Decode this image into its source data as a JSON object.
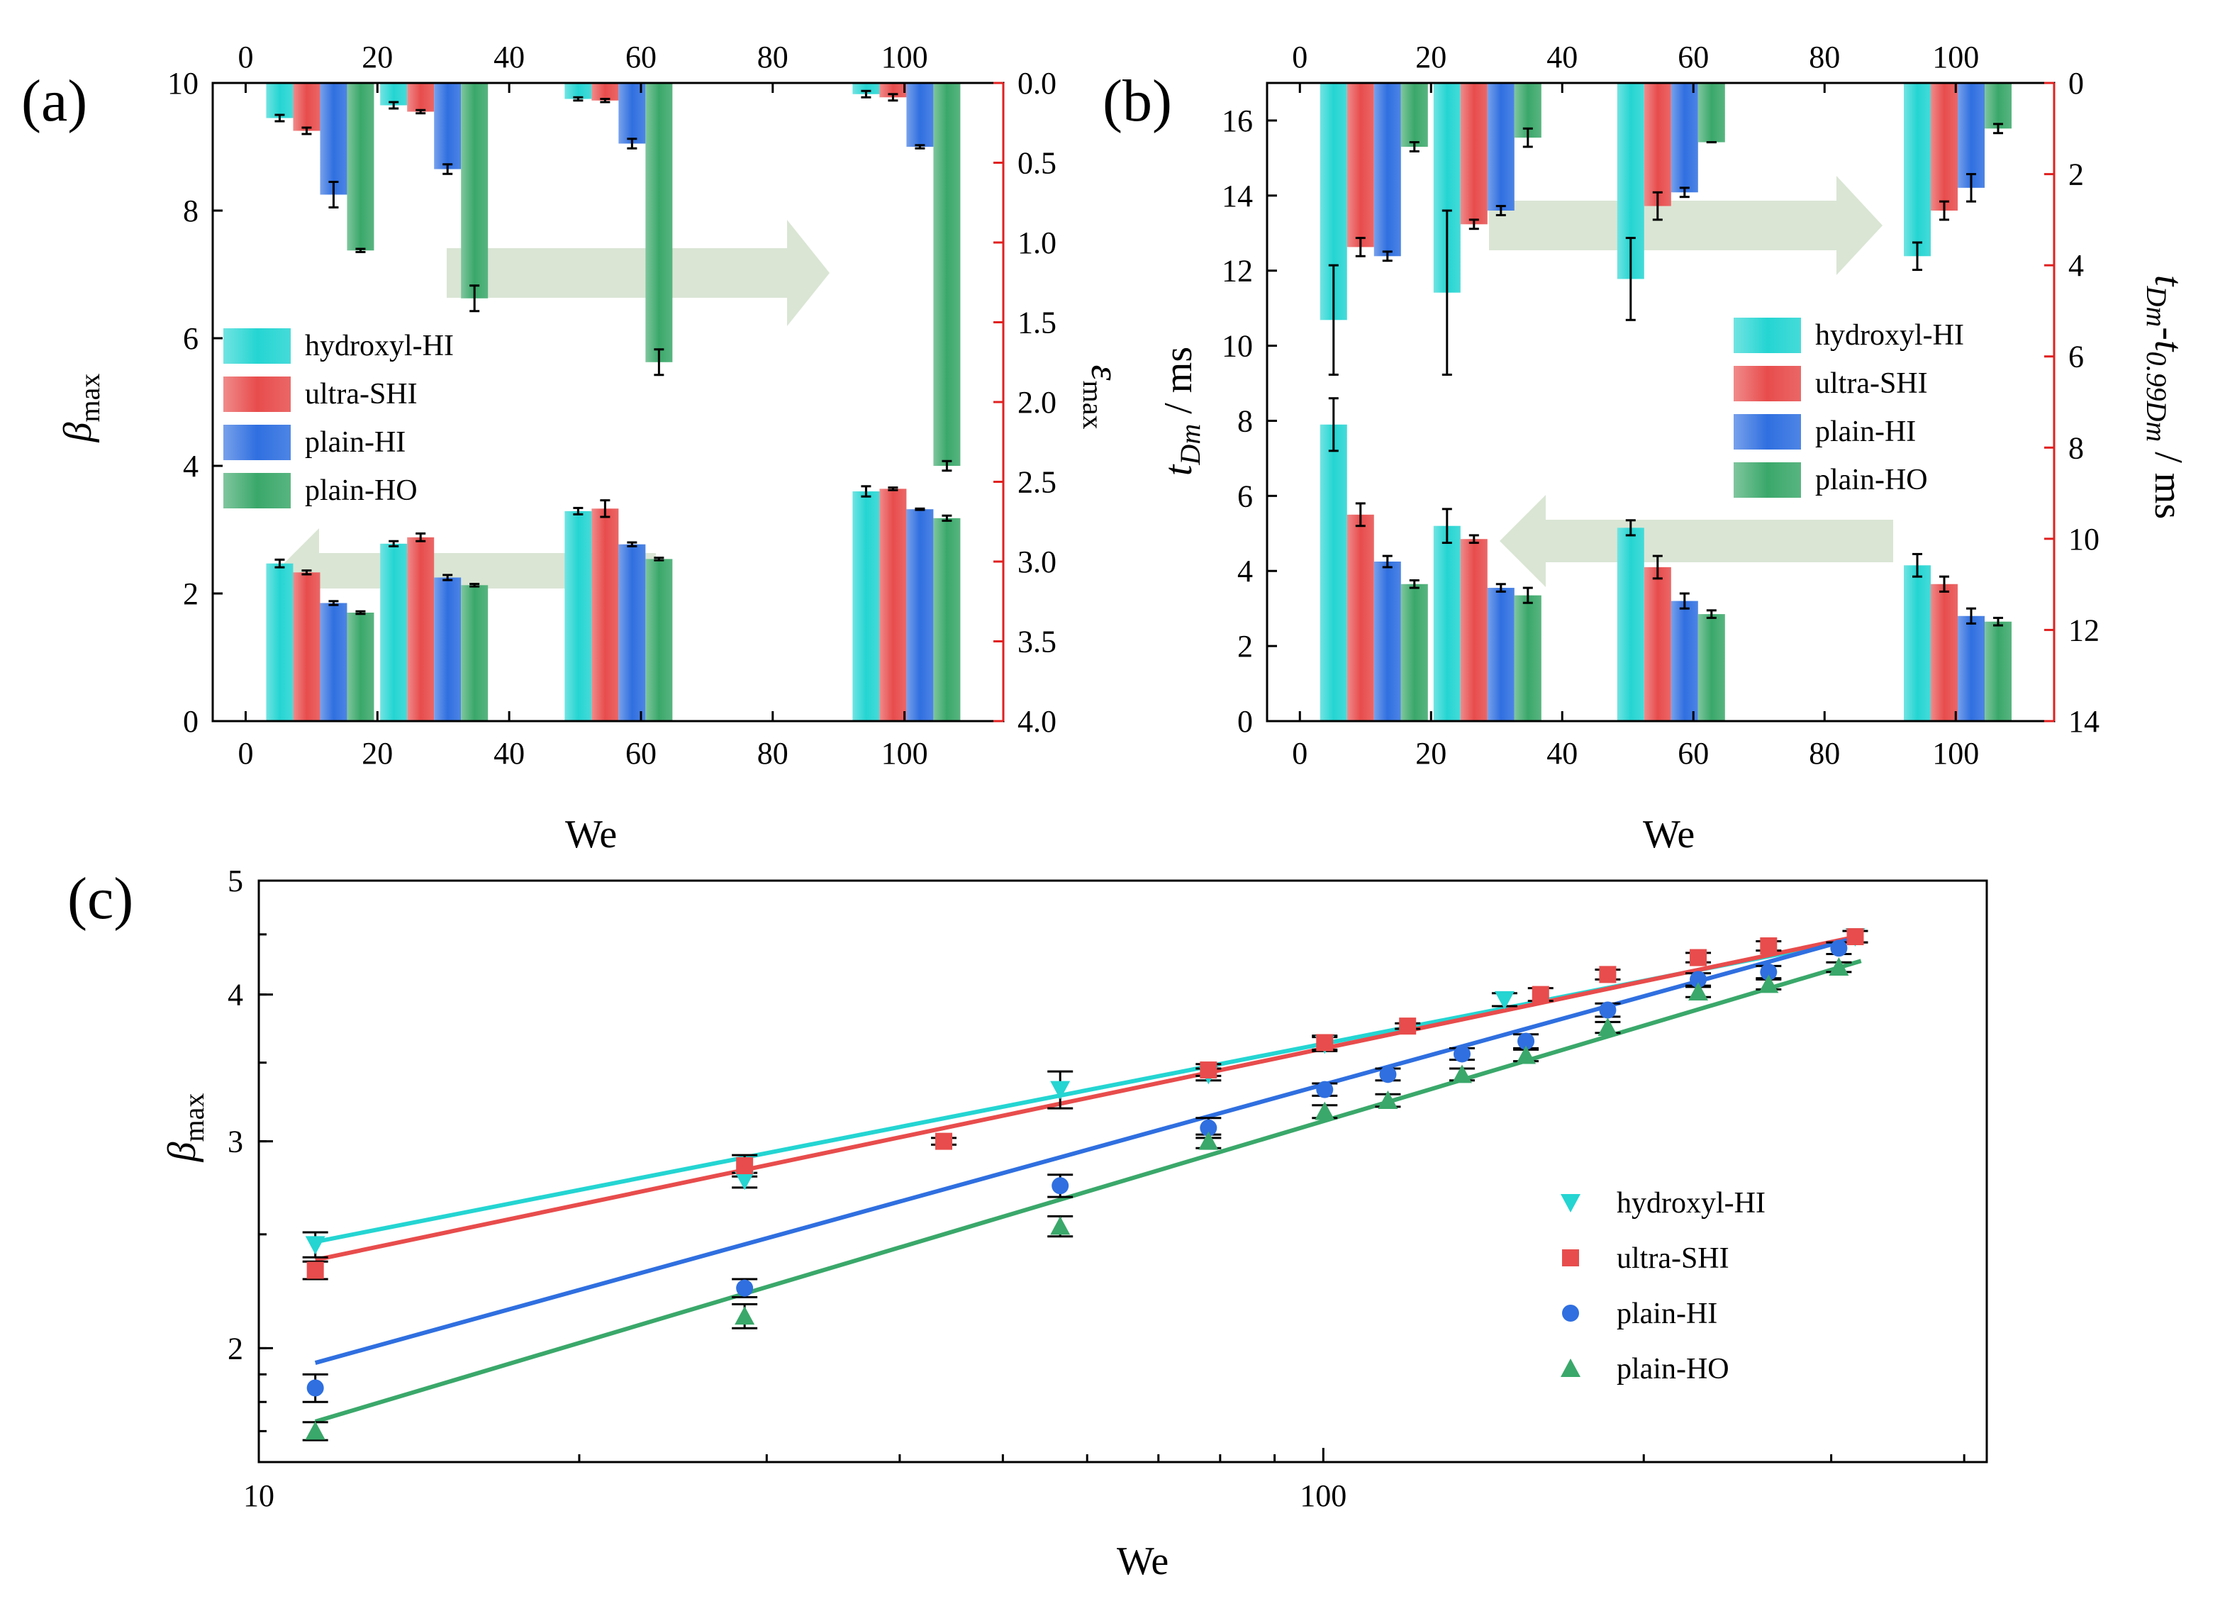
{
  "panels": {
    "a": {
      "label": "(a)"
    },
    "b": {
      "label": "(b)"
    },
    "c": {
      "label": "(c)"
    }
  },
  "colors": {
    "hydroxyl-HI": "#24d5d2",
    "ultra-SHI": "#e84c4c",
    "plain-HI": "#2f6fe0",
    "plain-HO": "#3aa86a",
    "right_axis": "#e02020",
    "arrow": "#d4e1cc"
  },
  "chart_data": [
    {
      "id": "a",
      "type": "bar",
      "title": "",
      "xlabel": "We",
      "ylabel": "β_max",
      "ylabel_main": "β",
      "ylabel_sub": "max",
      "y2label": "ε_max",
      "y2label_main": "ε",
      "y2label_sub": "max",
      "xlim": [
        -5,
        115
      ],
      "xticks": [
        0,
        20,
        40,
        60,
        80,
        100
      ],
      "xtick_labels": [
        "0",
        "20",
        "40",
        "60",
        "80",
        "100"
      ],
      "ylim": [
        0,
        10
      ],
      "yticks": [
        0,
        2,
        4,
        6,
        8,
        10
      ],
      "ytick_labels": [
        "0",
        "2",
        "4",
        "6",
        "8",
        "10"
      ],
      "y2lim": [
        4.0,
        0.0
      ],
      "y2ticks": [
        0.0,
        0.5,
        1.0,
        1.5,
        2.0,
        2.5,
        3.0,
        3.5,
        4.0
      ],
      "y2tick_labels": [
        "0.0",
        "0.5",
        "1.0",
        "1.5",
        "2.0",
        "2.5",
        "3.0",
        "3.5",
        "4.0"
      ],
      "groups_we": [
        11.3,
        28.6,
        56.6,
        100.3
      ],
      "legend_position": "center-left",
      "series": [
        {
          "name": "hydroxyl-HI",
          "beta": [
            2.47,
            2.78,
            3.29,
            3.6
          ],
          "beta_err": [
            0.06,
            0.04,
            0.05,
            0.08
          ],
          "eps": [
            0.22,
            0.14,
            0.1,
            0.07
          ],
          "eps_err": [
            0.02,
            0.02,
            0.01,
            0.02
          ]
        },
        {
          "name": "ultra-SHI",
          "beta": [
            2.33,
            2.88,
            3.33,
            3.64
          ],
          "beta_err": [
            0.03,
            0.06,
            0.13,
            0.02
          ],
          "eps": [
            0.3,
            0.18,
            0.11,
            0.09
          ],
          "eps_err": [
            0.02,
            0.01,
            0.01,
            0.02
          ]
        },
        {
          "name": "plain-HI",
          "beta": [
            1.85,
            2.25,
            2.77,
            3.32
          ],
          "beta_err": [
            0.03,
            0.04,
            0.03,
            0.01
          ],
          "eps": [
            0.7,
            0.54,
            0.38,
            0.4
          ],
          "eps_err": [
            0.08,
            0.03,
            0.03,
            0.01
          ]
        },
        {
          "name": "plain-HO",
          "beta": [
            1.7,
            2.13,
            2.54,
            3.18
          ],
          "beta_err": [
            0.02,
            0.02,
            0.02,
            0.04
          ],
          "eps": [
            1.05,
            1.35,
            1.75,
            2.4
          ],
          "eps_err": [
            0.01,
            0.08,
            0.08,
            0.03
          ]
        }
      ]
    },
    {
      "id": "b",
      "type": "bar",
      "title": "",
      "xlabel": "We",
      "ylabel": "t_Dm / ms",
      "ylabel_main": "t",
      "ylabel_sub": "Dm",
      "ylabel_suffix": " / ms",
      "y2label": "t_Dm-t_0.99Dm / ms",
      "y2label_main": "t",
      "y2label_sub1": "Dm",
      "y2label_mid": "-t",
      "y2label_sub2": "0.99Dm",
      "y2label_suffix": " / ms",
      "xlim": [
        -5,
        115
      ],
      "xticks": [
        0,
        20,
        40,
        60,
        80,
        100
      ],
      "xtick_labels": [
        "0",
        "20",
        "40",
        "60",
        "80",
        "100"
      ],
      "ylim": [
        0,
        17
      ],
      "yticks": [
        0,
        2,
        4,
        6,
        8,
        10,
        12,
        14,
        16
      ],
      "ytick_labels": [
        "0",
        "2",
        "4",
        "6",
        "8",
        "10",
        "12",
        "14",
        "16"
      ],
      "y2lim": [
        14,
        0
      ],
      "y2ticks": [
        0,
        2,
        4,
        6,
        8,
        10,
        12,
        14
      ],
      "y2tick_labels": [
        "0",
        "2",
        "4",
        "6",
        "8",
        "10",
        "12",
        "14"
      ],
      "groups_we": [
        11.3,
        28.6,
        56.6,
        100.3
      ],
      "legend_position": "center-right",
      "series": [
        {
          "name": "hydroxyl-HI",
          "t": [
            7.9,
            5.2,
            5.15,
            4.15
          ],
          "t_err": [
            0.7,
            0.45,
            0.2,
            0.3
          ],
          "dt": [
            5.2,
            4.6,
            4.3,
            3.8
          ],
          "dt_err": [
            1.2,
            1.8,
            0.9,
            0.3
          ]
        },
        {
          "name": "ultra-SHI",
          "t": [
            5.5,
            4.85,
            4.1,
            3.65
          ],
          "t_err": [
            0.3,
            0.1,
            0.3,
            0.2
          ],
          "dt": [
            3.6,
            3.1,
            2.7,
            2.8
          ],
          "dt_err": [
            0.2,
            0.1,
            0.3,
            0.2
          ]
        },
        {
          "name": "plain-HI",
          "t": [
            4.25,
            3.55,
            3.2,
            2.8
          ],
          "t_err": [
            0.15,
            0.1,
            0.2,
            0.2
          ],
          "dt": [
            3.8,
            2.8,
            2.4,
            2.3
          ],
          "dt_err": [
            0.1,
            0.1,
            0.1,
            0.3
          ]
        },
        {
          "name": "plain-HO",
          "t": [
            3.65,
            3.35,
            2.85,
            2.65
          ],
          "t_err": [
            0.1,
            0.2,
            0.1,
            0.1
          ],
          "dt": [
            1.4,
            1.2,
            1.3,
            1.0
          ],
          "dt_err": [
            0.1,
            0.2,
            0.0,
            0.1
          ]
        }
      ]
    },
    {
      "id": "c",
      "type": "scatter",
      "title": "",
      "xlabel": "We",
      "ylabel": "β_max",
      "ylabel_main": "β",
      "ylabel_sub": "max",
      "xscale": "log",
      "yscale": "log",
      "xlim": [
        10,
        420
      ],
      "ylim": [
        1.6,
        5
      ],
      "xticks": [
        10,
        100
      ],
      "xtick_labels": [
        "10",
        "100"
      ],
      "yticks": [
        2,
        3,
        4,
        5
      ],
      "ytick_labels": [
        "2",
        "3",
        "4",
        "5"
      ],
      "legend_position": "center-right",
      "series": [
        {
          "name": "hydroxyl-HI",
          "marker": "triangle-down",
          "x": [
            11.3,
            28.6,
            56.6,
            78,
            100.3,
            148,
            316
          ],
          "y": [
            2.45,
            2.78,
            3.32,
            3.42,
            3.63,
            3.96,
            4.48
          ],
          "err": [
            0.06,
            0.04,
            0.12,
            0.04,
            0.05,
            0.05,
            0.05
          ],
          "fit": {
            "a": 1.6,
            "b": 0.178
          }
        },
        {
          "name": "ultra-SHI",
          "marker": "square",
          "x": [
            11.3,
            28.6,
            44,
            78,
            100.3,
            120,
            160,
            185,
            225,
            262,
            316
          ],
          "y": [
            2.33,
            2.86,
            3.0,
            3.45,
            3.64,
            3.76,
            4.0,
            4.16,
            4.3,
            4.4,
            4.48
          ],
          "err": [
            0.04,
            0.06,
            0.02,
            0.04,
            0.05,
            0.02,
            0.05,
            0.04,
            0.04,
            0.04,
            0.05
          ],
          "fit": {
            "a": 1.5,
            "b": 0.19
          }
        },
        {
          "name": "plain-HI",
          "marker": "circle",
          "x": [
            11.3,
            28.6,
            56.6,
            78,
            100.3,
            115,
            135,
            155,
            185,
            225,
            262,
            305
          ],
          "y": [
            1.85,
            2.25,
            2.75,
            3.08,
            3.32,
            3.42,
            3.56,
            3.65,
            3.88,
            4.12,
            4.18,
            4.38
          ],
          "err": [
            0.05,
            0.04,
            0.06,
            0.06,
            0.04,
            0.04,
            0.04,
            0.05,
            0.05,
            0.05,
            0.05,
            0.05
          ],
          "fit": {
            "a": 1.06,
            "b": 0.25
          }
        },
        {
          "name": "plain-HO",
          "marker": "triangle-up",
          "x": [
            11.3,
            28.6,
            56.6,
            78,
            100.3,
            115,
            135,
            155,
            185,
            225,
            262,
            305
          ],
          "y": [
            1.7,
            2.13,
            2.54,
            3.0,
            3.18,
            3.25,
            3.42,
            3.55,
            3.75,
            4.02,
            4.08,
            4.22
          ],
          "err": [
            0.03,
            0.05,
            0.05,
            0.04,
            0.04,
            0.04,
            0.04,
            0.04,
            0.04,
            0.04,
            0.04,
            0.04
          ],
          "fit": {
            "a": 0.9,
            "b": 0.27
          }
        }
      ]
    }
  ]
}
